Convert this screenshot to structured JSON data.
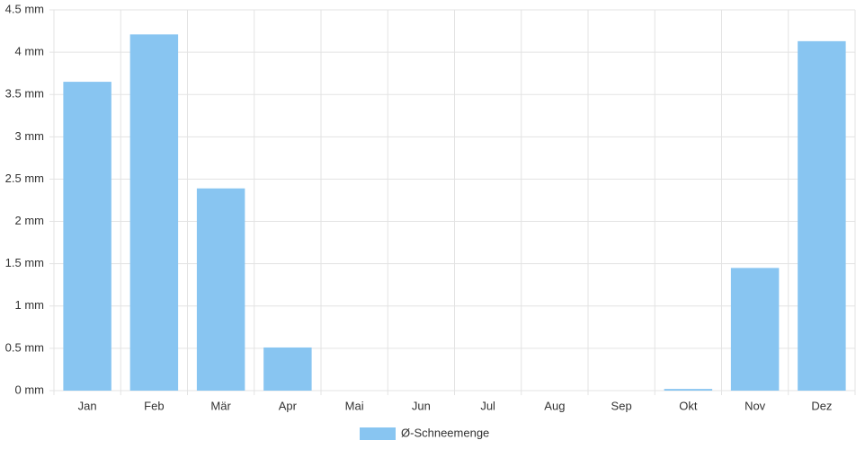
{
  "chart_data": {
    "type": "bar",
    "categories": [
      "Jan",
      "Feb",
      "Mär",
      "Apr",
      "Mai",
      "Jun",
      "Jul",
      "Aug",
      "Sep",
      "Okt",
      "Nov",
      "Dez"
    ],
    "series": [
      {
        "name": "Ø-Schneemenge",
        "color": "#88c5f1",
        "values": [
          3.65,
          4.21,
          2.39,
          0.51,
          0,
          0,
          0,
          0,
          0,
          0.02,
          1.45,
          4.13
        ]
      }
    ],
    "ylim": [
      0,
      4.5
    ],
    "yticks": [
      {
        "value": 0,
        "label": "0 mm"
      },
      {
        "value": 0.5,
        "label": "0.5 mm"
      },
      {
        "value": 1,
        "label": "1 mm"
      },
      {
        "value": 1.5,
        "label": "1.5 mm"
      },
      {
        "value": 2,
        "label": "2 mm"
      },
      {
        "value": 2.5,
        "label": "2.5 mm"
      },
      {
        "value": 3,
        "label": "3 mm"
      },
      {
        "value": 3.5,
        "label": "3.5 mm"
      },
      {
        "value": 4,
        "label": "4 mm"
      },
      {
        "value": 4.5,
        "label": "4.5 mm"
      }
    ],
    "grid": true,
    "legend": "bottom"
  }
}
